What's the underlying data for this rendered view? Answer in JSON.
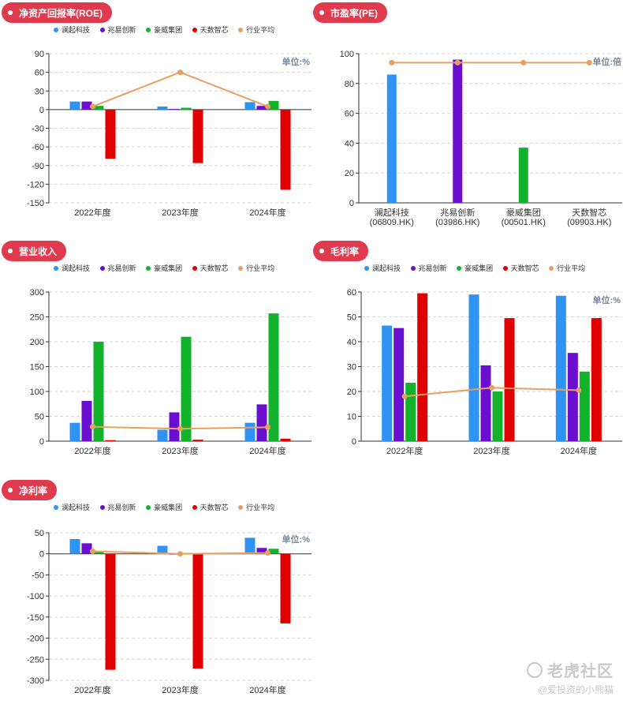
{
  "colors": {
    "accent": "#e03a4e",
    "series": [
      "#2e93f3",
      "#6a0fd0",
      "#12b32a",
      "#e00000"
    ],
    "average": "#e8a060"
  },
  "legend": [
    "澜起科技",
    "兆易创新",
    "豪威集团",
    "天数智芯",
    "行业平均"
  ],
  "watermark": {
    "brand": "老虎社区",
    "user": "@爱投资的小熊猫"
  },
  "chart_data": [
    {
      "id": "roe",
      "type": "bar",
      "title": "净资产回报率(ROE)",
      "unit": "单位:%",
      "categories": [
        "2022年度",
        "2023年度",
        "2024年度"
      ],
      "ylim": [
        -150,
        90
      ],
      "yticks": [
        90,
        60,
        30,
        0,
        -30,
        -60,
        -90,
        -120,
        -150
      ],
      "series": [
        {
          "name": "澜起科技",
          "values": [
            13,
            5,
            12
          ]
        },
        {
          "name": "兆易创新",
          "values": [
            13,
            1,
            6
          ]
        },
        {
          "name": "豪威集团",
          "values": [
            6,
            3,
            14
          ]
        },
        {
          "name": "天数智芯",
          "values": [
            -79,
            -86,
            -129
          ]
        }
      ],
      "average": {
        "name": "行业平均",
        "values": [
          5,
          60,
          5
        ]
      }
    },
    {
      "id": "pe",
      "type": "bar",
      "title": "市盈率(PE)",
      "unit": "单位:倍",
      "categories": [
        "澜起科技\n(06809.HK)",
        "兆易创新\n(03986.HK)",
        "豪威集团\n(00501.HK)",
        "天数智芯\n(09903.HK)"
      ],
      "ylim": [
        0,
        100
      ],
      "yticks": [
        100,
        80,
        60,
        40,
        20,
        0
      ],
      "bars": [
        {
          "name": "澜起科技",
          "value": 86
        },
        {
          "name": "兆易创新",
          "value": 96
        },
        {
          "name": "豪威集团",
          "value": 37
        },
        {
          "name": "天数智芯",
          "value": 0
        }
      ],
      "average": {
        "name": "行业平均",
        "values": [
          94,
          94,
          94,
          94
        ]
      }
    },
    {
      "id": "revenue",
      "type": "bar",
      "title": "营业收入",
      "unit": "",
      "categories": [
        "2022年度",
        "2023年度",
        "2024年度"
      ],
      "ylim": [
        0,
        300
      ],
      "yticks": [
        300,
        250,
        200,
        150,
        100,
        50,
        0
      ],
      "series": [
        {
          "name": "澜起科技",
          "values": [
            37,
            23,
            37
          ]
        },
        {
          "name": "兆易创新",
          "values": [
            81,
            58,
            74
          ]
        },
        {
          "name": "豪威集团",
          "values": [
            200,
            210,
            257
          ]
        },
        {
          "name": "天数智芯",
          "values": [
            2,
            3,
            5
          ]
        }
      ],
      "average": {
        "name": "行业平均",
        "values": [
          29,
          25,
          28
        ]
      }
    },
    {
      "id": "gross_margin",
      "type": "bar",
      "title": "毛利率",
      "unit": "单位:%",
      "categories": [
        "2022年度",
        "2023年度",
        "2024年度"
      ],
      "ylim": [
        0,
        60
      ],
      "yticks": [
        60,
        50,
        40,
        30,
        20,
        10,
        0
      ],
      "series": [
        {
          "name": "澜起科技",
          "values": [
            46.5,
            59,
            58.5
          ]
        },
        {
          "name": "兆易创新",
          "values": [
            45.5,
            30.5,
            35.5
          ]
        },
        {
          "name": "豪威集团",
          "values": [
            23.5,
            20,
            28
          ]
        },
        {
          "name": "天数智芯",
          "values": [
            59.5,
            49.5,
            49.5
          ]
        }
      ],
      "average": {
        "name": "行业平均",
        "values": [
          18,
          21.5,
          20.5
        ]
      }
    },
    {
      "id": "net_margin",
      "type": "bar",
      "title": "净利率",
      "unit": "单位:%",
      "categories": [
        "2022年度",
        "2023年度",
        "2024年度"
      ],
      "ylim": [
        -300,
        50
      ],
      "yticks": [
        50,
        0,
        -50,
        -100,
        -150,
        -200,
        -250,
        -300
      ],
      "series": [
        {
          "name": "澜起科技",
          "values": [
            35,
            19,
            38
          ]
        },
        {
          "name": "兆易创新",
          "values": [
            25,
            0,
            14
          ]
        },
        {
          "name": "豪威集团",
          "values": [
            7,
            2,
            12
          ]
        },
        {
          "name": "天数智芯",
          "values": [
            -275,
            -272,
            -165
          ]
        }
      ],
      "average": {
        "name": "行业平均",
        "values": [
          6,
          0,
          2
        ]
      }
    }
  ]
}
